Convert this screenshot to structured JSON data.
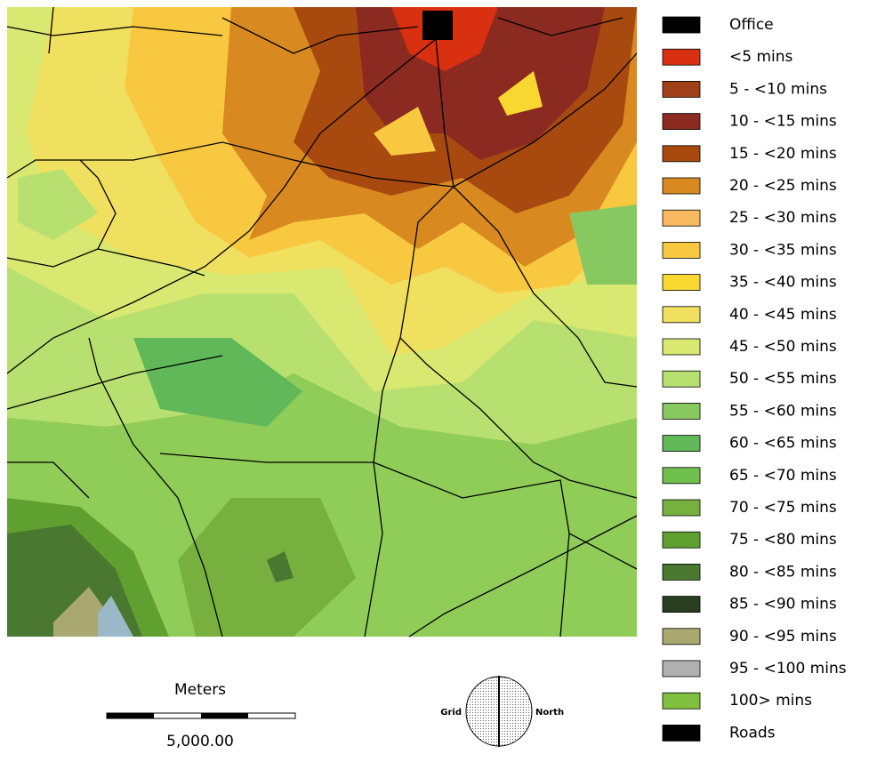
{
  "legend": [
    {
      "label": "Office",
      "color": "#000000"
    },
    {
      "label": "<5 mins",
      "color": "#d83010"
    },
    {
      "label": "5 - <10 mins",
      "color": "#a04018"
    },
    {
      "label": "10 - <15 mins",
      "color": "#8a2a20"
    },
    {
      "label": "15 - <20 mins",
      "color": "#a84a10"
    },
    {
      "label": "20 - <25 mins",
      "color": "#d88a20"
    },
    {
      "label": "25 - <30 mins",
      "color": "#f8b860"
    },
    {
      "label": "30 - <35 mins",
      "color": "#f8c840"
    },
    {
      "label": "35 - <40 mins",
      "color": "#f8d830"
    },
    {
      "label": "40 - <45 mins",
      "color": "#f0e060"
    },
    {
      "label": "45 - <50 mins",
      "color": "#d8e870"
    },
    {
      "label": "50 - <55 mins",
      "color": "#b8e070"
    },
    {
      "label": "55 - <60 mins",
      "color": "#88c860"
    },
    {
      "label": "60 - <65 mins",
      "color": "#60b858"
    },
    {
      "label": "65 - <70 mins",
      "color": "#70c050"
    },
    {
      "label": "70 - <75 mins",
      "color": "#78b040"
    },
    {
      "label": "75 - <80 mins",
      "color": "#60a030"
    },
    {
      "label": "80 - <85 mins",
      "color": "#4a7830"
    },
    {
      "label": "85 - <90 mins",
      "color": "#284020"
    },
    {
      "label": "90 - <95 mins",
      "color": "#a8a870"
    },
    {
      "label": "95 - <100 mins",
      "color": "#b0b0b0"
    },
    {
      "label": "100> mins",
      "color": "#80c040"
    },
    {
      "label": "Roads",
      "color": "#000000"
    }
  ],
  "scale_bar": {
    "title": "Meters",
    "distance": "5,000.00"
  },
  "north_arrow": {
    "left": "Grid",
    "right": "North"
  }
}
